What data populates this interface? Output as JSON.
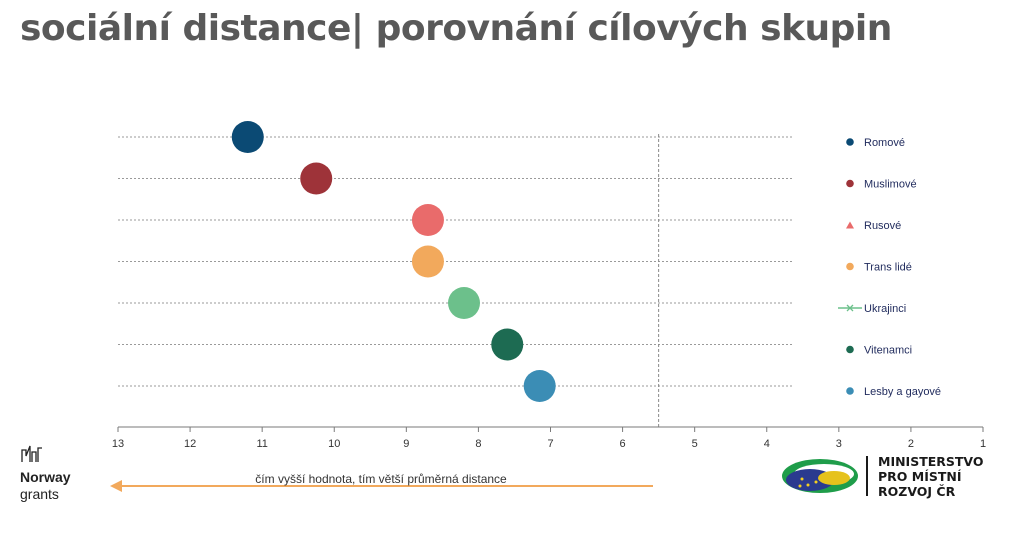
{
  "title": "sociální distance| porovnání cílových skupin",
  "chart_data": {
    "type": "scatter",
    "x_axis": {
      "min": 1,
      "max": 13,
      "reversed": true,
      "ticks": [
        13,
        12,
        11,
        10,
        9,
        8,
        7,
        6,
        5,
        4,
        3,
        2,
        1
      ]
    },
    "reference_line_x": 5.5,
    "grid_horizontal": true,
    "legend_position": "right",
    "annotation": "čím vyšší hodnota, tím větší průměrná distance",
    "series": [
      {
        "name": "Romové",
        "value": 11.2,
        "color": "#0b4a74",
        "legend_marker": "circle"
      },
      {
        "name": "Muslimové",
        "value": 10.25,
        "color": "#9e3339",
        "legend_marker": "circle"
      },
      {
        "name": "Rusové",
        "value": 8.7,
        "color": "#e96b6b",
        "legend_marker": "triangle"
      },
      {
        "name": "Trans lidé",
        "value": 8.7,
        "color": "#f2a95c",
        "legend_marker": "circle"
      },
      {
        "name": "Ukrajinci",
        "value": 8.2,
        "color": "#6cc08b",
        "legend_marker": "line-x"
      },
      {
        "name": "Vitenamci",
        "value": 7.6,
        "color": "#1d6b52",
        "legend_marker": "circle"
      },
      {
        "name": "Lesby a gayové",
        "value": 7.15,
        "color": "#3b8db5",
        "legend_marker": "circle"
      }
    ]
  },
  "logos": {
    "norway": {
      "line1": "Norway",
      "line2": "grants"
    },
    "ministry": {
      "line1": "MINISTERSTVO",
      "line2": "PRO MÍSTNÍ",
      "line3": "ROZVOJ ČR"
    }
  }
}
